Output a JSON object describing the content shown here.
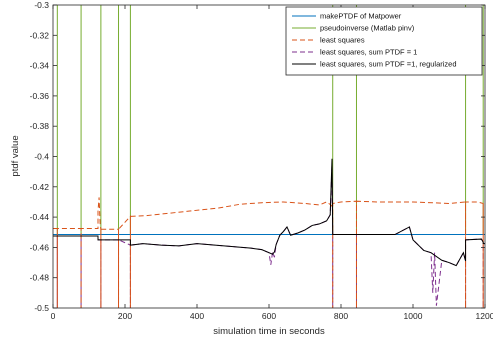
{
  "chart_data": {
    "type": "line",
    "title": "",
    "xlabel": "simulation time in seconds",
    "ylabel": "ptdf value",
    "xlim": [
      0,
      1200
    ],
    "ylim": [
      -0.5,
      -0.3
    ],
    "xticks": [
      0,
      200,
      400,
      600,
      800,
      1000,
      1200
    ],
    "yticks": [
      -0.3,
      -0.32,
      -0.34,
      -0.36,
      -0.38,
      -0.4,
      -0.42,
      -0.44,
      -0.46,
      -0.48,
      -0.5
    ],
    "grid": false,
    "legend_position": "top-right",
    "series": [
      {
        "name": "makePTDF of Matpower",
        "color": "#0072BD",
        "style": "solid",
        "x": [
          0,
          1200
        ],
        "y": [
          -0.4515,
          -0.4515
        ]
      },
      {
        "name": "pseudoinverse (Matlab pinv)",
        "color": "#77AC30",
        "style": "solid",
        "spikes_at": [
          12,
          78,
          133,
          182,
          215,
          777,
          843,
          1146,
          1195
        ],
        "x": [
          0,
          12,
          12,
          12,
          78,
          78,
          78,
          133,
          133,
          133,
          182,
          182,
          182,
          215,
          215,
          215,
          777,
          777,
          777,
          843,
          843,
          843,
          1146,
          1146,
          1146,
          1195,
          1195,
          1195,
          1200
        ],
        "y": [
          -0.4515,
          -0.4515,
          -0.3,
          -0.4515,
          -0.4515,
          -0.3,
          -0.4515,
          -0.4515,
          -0.3,
          -0.4515,
          -0.4515,
          -0.3,
          -0.4515,
          -0.4515,
          -0.3,
          -0.4515,
          -0.4515,
          -0.3,
          -0.4515,
          -0.4515,
          -0.3,
          -0.4515,
          -0.4515,
          -0.3,
          -0.4515,
          -0.4515,
          -0.3,
          -0.4515,
          -0.4515
        ]
      },
      {
        "name": "least squares",
        "color": "#D95319",
        "style": "dashed",
        "x": [
          0,
          12,
          12,
          12,
          78,
          78,
          78,
          125,
          125,
          128,
          131,
          133,
          133,
          133,
          182,
          182,
          182,
          215,
          215,
          215,
          260,
          300,
          340,
          380,
          420,
          460,
          520,
          580,
          640,
          700,
          740,
          760,
          772,
          777,
          777,
          777,
          800,
          843,
          843,
          843,
          900,
          1000,
          1100,
          1146,
          1146,
          1146,
          1180,
          1195,
          1195,
          1195,
          1200
        ],
        "y": [
          -0.4475,
          -0.4475,
          -0.5,
          -0.4475,
          -0.4475,
          -0.5,
          -0.4475,
          -0.4475,
          -0.436,
          -0.427,
          -0.445,
          -0.448,
          -0.5,
          -0.448,
          -0.448,
          -0.5,
          -0.448,
          -0.4395,
          -0.5,
          -0.4395,
          -0.439,
          -0.438,
          -0.437,
          -0.436,
          -0.435,
          -0.434,
          -0.4315,
          -0.4305,
          -0.43,
          -0.431,
          -0.432,
          -0.43,
          -0.432,
          -0.4335,
          -0.5,
          -0.431,
          -0.43,
          -0.4295,
          -0.5,
          -0.4295,
          -0.43,
          -0.43,
          -0.431,
          -0.43,
          -0.5,
          -0.43,
          -0.43,
          -0.431,
          -0.5,
          -0.431,
          -0.431
        ]
      },
      {
        "name": "least squares, sum PTDF = 1",
        "color": "#7E2F8E",
        "style": "dashed",
        "x": [
          0,
          12,
          12,
          12,
          78,
          78,
          78,
          120,
          125,
          125,
          133,
          133,
          133,
          182,
          182,
          182,
          215,
          215,
          215,
          250,
          300,
          350,
          400,
          450,
          500,
          550,
          580,
          600,
          605,
          610,
          615,
          620,
          630,
          640,
          650,
          660,
          680,
          700,
          720,
          740,
          760,
          770,
          775,
          777,
          777,
          777,
          800,
          843,
          843,
          843,
          950,
          990,
          1000,
          1030,
          1050,
          1055,
          1060,
          1065,
          1080,
          1100,
          1120,
          1140,
          1146,
          1146,
          1146,
          1190,
          1195,
          1195,
          1195,
          1200
        ],
        "y": [
          -0.4525,
          -0.4525,
          -0.5,
          -0.4525,
          -0.4525,
          -0.5,
          -0.4525,
          -0.4525,
          -0.4525,
          -0.455,
          -0.455,
          -0.5,
          -0.455,
          -0.455,
          -0.5,
          -0.455,
          -0.4585,
          -0.5,
          -0.4585,
          -0.4575,
          -0.4585,
          -0.459,
          -0.4575,
          -0.4585,
          -0.4595,
          -0.4605,
          -0.4615,
          -0.4635,
          -0.4715,
          -0.463,
          -0.4665,
          -0.458,
          -0.452,
          -0.4495,
          -0.4465,
          -0.452,
          -0.4505,
          -0.4485,
          -0.4455,
          -0.4445,
          -0.4425,
          -0.4385,
          -0.4055,
          -0.4515,
          -0.5,
          -0.4515,
          -0.4515,
          -0.4515,
          -0.5,
          -0.4515,
          -0.4515,
          -0.4465,
          -0.455,
          -0.462,
          -0.4635,
          -0.49,
          -0.4635,
          -0.4985,
          -0.4685,
          -0.47,
          -0.472,
          -0.4635,
          -0.469,
          -0.5,
          -0.455,
          -0.4545,
          -0.4565,
          -0.5,
          -0.4575,
          -0.4575
        ]
      },
      {
        "name": "least squares, sum PTDF =1, regularized",
        "color": "#000000",
        "style": "solid",
        "x": [
          0,
          125,
          125,
          215,
          215,
          250,
          300,
          350,
          400,
          450,
          500,
          550,
          580,
          600,
          610,
          615,
          620,
          630,
          640,
          650,
          660,
          680,
          700,
          720,
          740,
          760,
          770,
          775,
          777,
          777,
          950,
          990,
          1000,
          1030,
          1050,
          1080,
          1100,
          1120,
          1140,
          1146,
          1146,
          1190,
          1195,
          1195,
          1200
        ],
        "y": [
          -0.4525,
          -0.4525,
          -0.455,
          -0.455,
          -0.4585,
          -0.4575,
          -0.4585,
          -0.459,
          -0.4575,
          -0.4585,
          -0.4595,
          -0.4605,
          -0.4615,
          -0.4635,
          -0.4645,
          -0.463,
          -0.458,
          -0.452,
          -0.4495,
          -0.4465,
          -0.452,
          -0.4505,
          -0.4485,
          -0.4455,
          -0.4445,
          -0.4425,
          -0.4385,
          -0.4015,
          -0.4515,
          -0.4515,
          -0.4515,
          -0.4465,
          -0.455,
          -0.462,
          -0.4635,
          -0.4685,
          -0.47,
          -0.472,
          -0.4635,
          -0.469,
          -0.455,
          -0.4545,
          -0.4565,
          -0.4575,
          -0.4575
        ]
      }
    ]
  }
}
